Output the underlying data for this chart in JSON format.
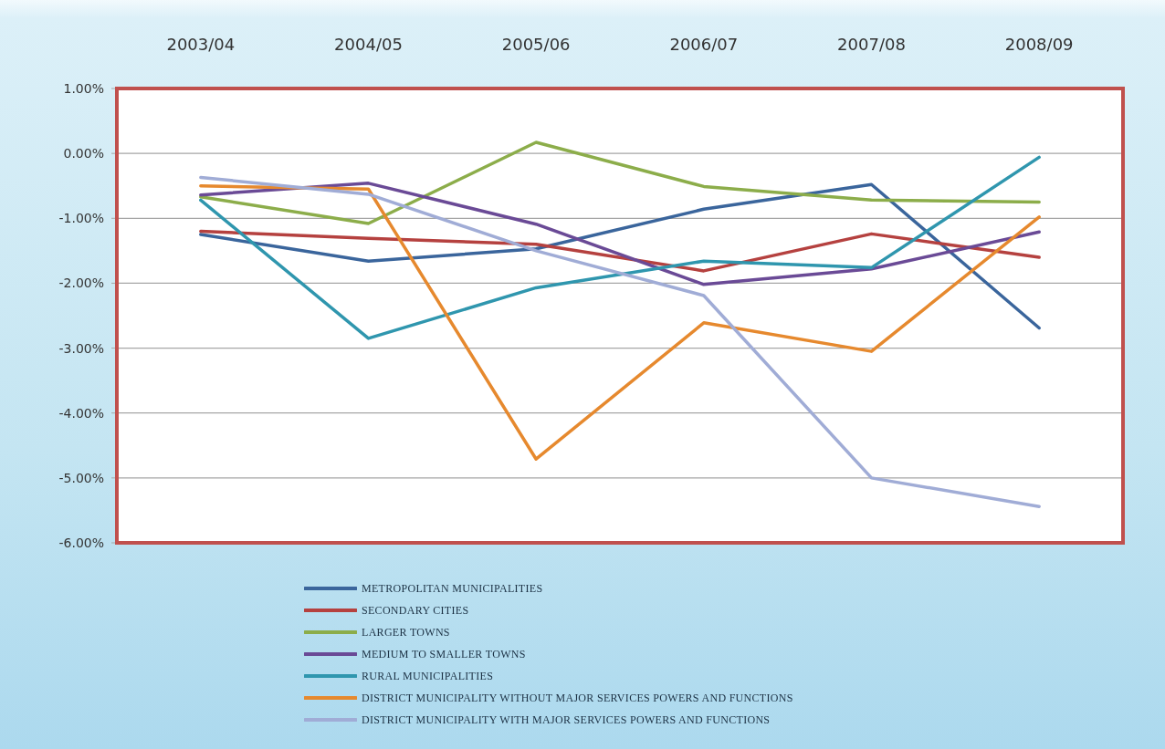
{
  "chart_data": {
    "type": "line",
    "categories": [
      "2003/04",
      "2004/05",
      "2005/06",
      "2006/07",
      "2007/08",
      "2008/09"
    ],
    "series": [
      {
        "name": "METROPOLITAN MUNICIPALITIES",
        "color": "#3a659c",
        "values": [
          -1.25,
          -1.66,
          -1.47,
          -0.86,
          -0.48,
          -2.69
        ]
      },
      {
        "name": "SECONDARY CITIES",
        "color": "#b5413f",
        "values": [
          -1.2,
          -1.31,
          -1.4,
          -1.81,
          -1.24,
          -1.6
        ]
      },
      {
        "name": "LARGER TOWNS",
        "color": "#8cad4a",
        "values": [
          -0.67,
          -1.08,
          0.17,
          -0.51,
          -0.72,
          -0.75
        ]
      },
      {
        "name": "MEDIUM TO SMALLER TOWNS",
        "color": "#6a4a96",
        "values": [
          -0.64,
          -0.46,
          -1.09,
          -2.02,
          -1.78,
          -1.21
        ]
      },
      {
        "name": "RURAL MUNICIPALITIES",
        "color": "#2f96ae",
        "values": [
          -0.72,
          -2.85,
          -2.07,
          -1.66,
          -1.76,
          -0.06
        ]
      },
      {
        "name": "DISTRICT MUNICIPALITY WITHOUT MAJOR SERVICES POWERS AND FUNCTIONS",
        "color": "#e6892e",
        "values": [
          -0.5,
          -0.55,
          -4.71,
          -2.61,
          -3.05,
          -0.98
        ]
      },
      {
        "name": "DISTRICT MUNICIPALITY WITH MAJOR SERVICES POWERS AND FUNCTIONS",
        "color": "#a0acd6",
        "values": [
          -0.37,
          -0.63,
          -1.5,
          -2.19,
          -5.0,
          -5.44
        ]
      }
    ],
    "ylim": [
      -6,
      1
    ],
    "yticks": [
      {
        "value": 1,
        "label": "1.00%"
      },
      {
        "value": 0,
        "label": "0.00%"
      },
      {
        "value": -1,
        "label": "-1.00%"
      },
      {
        "value": -2,
        "label": "-2.00%"
      },
      {
        "value": -3,
        "label": "-3.00%"
      },
      {
        "value": -4,
        "label": "-4.00%"
      },
      {
        "value": -5,
        "label": "-5.00%"
      },
      {
        "value": -6,
        "label": "-6.00%"
      }
    ],
    "grid": "y",
    "legend": "bottom",
    "line_style": "solid"
  }
}
